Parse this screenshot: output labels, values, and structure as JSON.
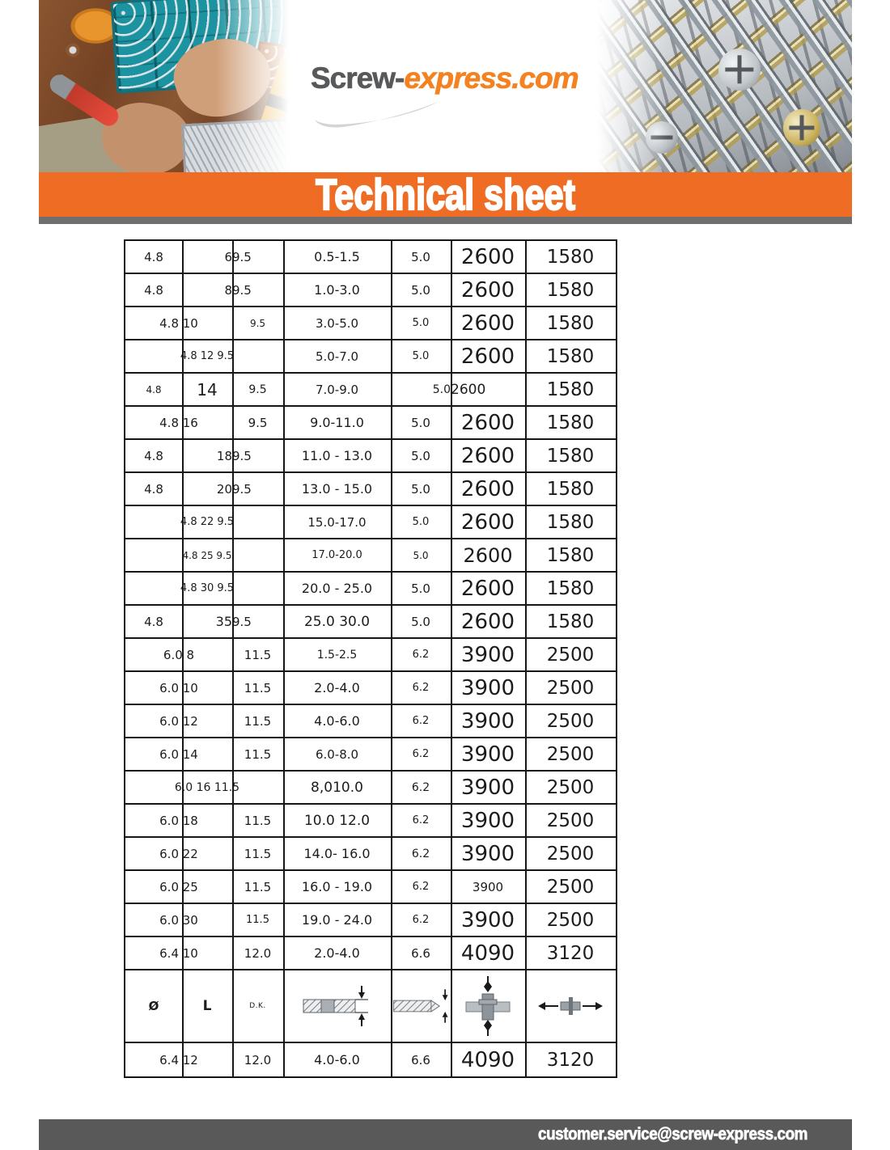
{
  "header": {
    "logo": {
      "part1": "Screw-",
      "part2": "express.com",
      "gray": "#58595b",
      "orange": "#f58220"
    }
  },
  "banner": {
    "title": "Technical sheet",
    "bg": "#ee6c23"
  },
  "footer": {
    "email": "customer.service@screw-express.com",
    "bg": "#595959"
  },
  "table": {
    "header_labels": {
      "diameter": "Ø",
      "length": "L",
      "head": "D.K."
    },
    "diagram_icons": [
      "grip-plates-diagram",
      "drill-hole-diagram",
      "tensile-rivet-diagram",
      "shear-rivet-diagram"
    ],
    "rows": [
      {
        "cells": [
          {
            "c": 0,
            "t": "4.8"
          },
          {
            "c": 1,
            "t": "6",
            "a": "r"
          },
          {
            "c": 2,
            "t": "9.5",
            "a": "l"
          },
          {
            "c": 3,
            "t": "0.5-1.5",
            "f": 16
          },
          {
            "c": 4,
            "t": "5.0"
          },
          {
            "c": 5,
            "t": "2600",
            "f": 26
          },
          {
            "c": 6,
            "t": "1580",
            "f": 23
          }
        ]
      },
      {
        "cells": [
          {
            "c": 0,
            "t": "4.8"
          },
          {
            "c": 1,
            "t": "8",
            "a": "r"
          },
          {
            "c": 2,
            "t": "9.5",
            "a": "l"
          },
          {
            "c": 3,
            "t": "1.0-3.0",
            "f": 16
          },
          {
            "c": 4,
            "t": "5.0"
          },
          {
            "c": 5,
            "t": "2600",
            "f": 26
          },
          {
            "c": 6,
            "t": "1580",
            "f": 23
          }
        ]
      },
      {
        "cells": [
          {
            "c": 0,
            "s": 2,
            "t": "4.8 10"
          },
          {
            "c": 2,
            "t": "9.5",
            "f": 12
          },
          {
            "c": 3,
            "t": "3.0-5.0",
            "f": 15
          },
          {
            "c": 4,
            "t": "5.0",
            "f": 13
          },
          {
            "c": 5,
            "t": "2600",
            "f": 26
          },
          {
            "c": 6,
            "t": "1580",
            "f": 23
          }
        ]
      },
      {
        "cells": [
          {
            "c": 1,
            "t": "4.8 12 9.5",
            "f": 13,
            "o": 1
          },
          {
            "c": 3,
            "t": "5.0-7.0",
            "f": 15
          },
          {
            "c": 4,
            "t": "5.0",
            "f": 13
          },
          {
            "c": 5,
            "t": "2600",
            "f": 26
          },
          {
            "c": 6,
            "t": "1580",
            "f": 23
          }
        ]
      },
      {
        "cells": [
          {
            "c": 0,
            "t": "4.8",
            "f": 12
          },
          {
            "c": 1,
            "t": "14",
            "f": 20
          },
          {
            "c": 2,
            "t": "9.5",
            "f": 14
          },
          {
            "c": 3,
            "t": "7.0-9.0",
            "f": 15
          },
          {
            "c": 4,
            "t": "5.0",
            "a": "r",
            "f": 14
          },
          {
            "c": 5,
            "t": "2600",
            "a": "l",
            "f": 17
          },
          {
            "c": 6,
            "t": "1580",
            "f": 23
          }
        ]
      },
      {
        "cells": [
          {
            "c": 0,
            "s": 2,
            "t": "4.8 16"
          },
          {
            "c": 2,
            "t": "9.5",
            "f": 15
          },
          {
            "c": 3,
            "t": "9.0-11.0",
            "f": 16
          },
          {
            "c": 4,
            "t": "5.0"
          },
          {
            "c": 5,
            "t": "2600",
            "f": 26
          },
          {
            "c": 6,
            "t": "1580",
            "f": 23
          }
        ]
      },
      {
        "cells": [
          {
            "c": 0,
            "t": "4.8"
          },
          {
            "c": 1,
            "t": "18",
            "a": "r"
          },
          {
            "c": 2,
            "t": "9.5",
            "a": "l"
          },
          {
            "c": 3,
            "t": "11.0 - 13.0",
            "f": 16
          },
          {
            "c": 4,
            "t": "5.0"
          },
          {
            "c": 5,
            "t": "2600",
            "f": 26
          },
          {
            "c": 6,
            "t": "1580",
            "f": 23
          }
        ]
      },
      {
        "cells": [
          {
            "c": 0,
            "t": "4.8"
          },
          {
            "c": 1,
            "t": "20",
            "a": "r"
          },
          {
            "c": 2,
            "t": "9.5",
            "a": "l"
          },
          {
            "c": 3,
            "t": "13.0 - 15.0",
            "f": 16
          },
          {
            "c": 4,
            "t": "5.0"
          },
          {
            "c": 5,
            "t": "2600",
            "f": 26
          },
          {
            "c": 6,
            "t": "1580",
            "f": 23
          }
        ]
      },
      {
        "cells": [
          {
            "c": 1,
            "t": "4.8 22 9.5",
            "f": 13,
            "o": 1
          },
          {
            "c": 3,
            "t": "15.0-17.0",
            "f": 15
          },
          {
            "c": 4,
            "t": "5.0",
            "f": 13
          },
          {
            "c": 5,
            "t": "2600",
            "f": 26
          },
          {
            "c": 6,
            "t": "1580",
            "f": 23
          }
        ]
      },
      {
        "cells": [
          {
            "c": 1,
            "t": "4.8 25 9.5",
            "f": 12,
            "o": 1
          },
          {
            "c": 3,
            "t": "17.0-20.0",
            "f": 13
          },
          {
            "c": 4,
            "t": "5.0",
            "f": 12
          },
          {
            "c": 5,
            "t": "2600",
            "f": 24
          },
          {
            "c": 6,
            "t": "1580",
            "f": 23
          }
        ]
      },
      {
        "cells": [
          {
            "c": 1,
            "t": "4.8 30 9.5",
            "f": 13,
            "o": 1
          },
          {
            "c": 3,
            "t": "20.0 - 25.0",
            "f": 16
          },
          {
            "c": 4,
            "t": "5.0"
          },
          {
            "c": 5,
            "t": "2600",
            "f": 26
          },
          {
            "c": 6,
            "t": "1580",
            "f": 23
          }
        ]
      },
      {
        "cells": [
          {
            "c": 0,
            "t": "4.8"
          },
          {
            "c": 1,
            "t": "35",
            "a": "r",
            "f": 16
          },
          {
            "c": 2,
            "t": "9.5",
            "a": "l"
          },
          {
            "c": 3,
            "t": "25.0 30.0",
            "f": 17
          },
          {
            "c": 4,
            "t": "5.0"
          },
          {
            "c": 5,
            "t": "2600",
            "f": 26
          },
          {
            "c": 6,
            "t": "1580",
            "f": 23
          }
        ]
      },
      {
        "cells": [
          {
            "c": 0,
            "s": 2,
            "t": "6.0 8"
          },
          {
            "c": 2,
            "t": "11.5"
          },
          {
            "c": 3,
            "t": "1.5-2.5",
            "f": 14
          },
          {
            "c": 4,
            "t": "6.2",
            "f": 13
          },
          {
            "c": 5,
            "t": "3900",
            "f": 26
          },
          {
            "c": 6,
            "t": "2500",
            "f": 23
          }
        ]
      },
      {
        "cells": [
          {
            "c": 0,
            "s": 2,
            "t": "6.0 10"
          },
          {
            "c": 2,
            "t": "11.5"
          },
          {
            "c": 3,
            "t": "2.0-4.0",
            "f": 16
          },
          {
            "c": 4,
            "t": "6.2",
            "f": 13
          },
          {
            "c": 5,
            "t": "3900",
            "f": 26
          },
          {
            "c": 6,
            "t": "2500",
            "f": 23
          }
        ]
      },
      {
        "cells": [
          {
            "c": 0,
            "s": 2,
            "t": "6.0 12"
          },
          {
            "c": 2,
            "t": "11.5"
          },
          {
            "c": 3,
            "t": "4.0-6.0",
            "f": 16
          },
          {
            "c": 4,
            "t": "6.2",
            "f": 13
          },
          {
            "c": 5,
            "t": "3900",
            "f": 26
          },
          {
            "c": 6,
            "t": "2500",
            "f": 23
          }
        ]
      },
      {
        "cells": [
          {
            "c": 0,
            "s": 2,
            "t": "6.0 14"
          },
          {
            "c": 2,
            "t": "11.5"
          },
          {
            "c": 3,
            "t": "6.0-8.0",
            "f": 15
          },
          {
            "c": 4,
            "t": "6.2",
            "f": 13
          },
          {
            "c": 5,
            "t": "3900",
            "f": 26
          },
          {
            "c": 6,
            "t": "2500",
            "f": 23
          }
        ]
      },
      {
        "cells": [
          {
            "c": 1,
            "t": "6.0 16 11.5",
            "f": 14,
            "o": 1
          },
          {
            "c": 3,
            "t": "8,010.0",
            "f": 17
          },
          {
            "c": 4,
            "t": "6.2",
            "f": 14
          },
          {
            "c": 5,
            "t": "3900",
            "f": 26
          },
          {
            "c": 6,
            "t": "2500",
            "f": 23
          }
        ]
      },
      {
        "cells": [
          {
            "c": 0,
            "s": 2,
            "t": "6.0 18"
          },
          {
            "c": 2,
            "t": "11.5"
          },
          {
            "c": 3,
            "t": "10.0 12.0",
            "f": 17
          },
          {
            "c": 4,
            "t": "6.2",
            "f": 13
          },
          {
            "c": 5,
            "t": "3900",
            "f": 26
          },
          {
            "c": 6,
            "t": "2500",
            "f": 23
          }
        ]
      },
      {
        "cells": [
          {
            "c": 0,
            "s": 2,
            "t": "6.0 22"
          },
          {
            "c": 2,
            "t": "11.5"
          },
          {
            "c": 3,
            "t": "14.0- 16.0",
            "f": 16
          },
          {
            "c": 4,
            "t": "6.2",
            "f": 14
          },
          {
            "c": 5,
            "t": "3900",
            "f": 26
          },
          {
            "c": 6,
            "t": "2500",
            "f": 23
          }
        ]
      },
      {
        "cells": [
          {
            "c": 0,
            "s": 2,
            "t": "6.0 25"
          },
          {
            "c": 2,
            "t": "11.5"
          },
          {
            "c": 3,
            "t": "16.0 - 19.0",
            "f": 16
          },
          {
            "c": 4,
            "t": "6.2",
            "f": 13
          },
          {
            "c": 5,
            "t": "3900",
            "f": 15
          },
          {
            "c": 6,
            "t": "2500",
            "f": 23
          }
        ]
      },
      {
        "cells": [
          {
            "c": 0,
            "s": 2,
            "t": "6.0 30"
          },
          {
            "c": 2,
            "t": "11.5",
            "f": 13
          },
          {
            "c": 3,
            "t": "19.0 - 24.0",
            "f": 16
          },
          {
            "c": 4,
            "t": "6.2",
            "f": 13
          },
          {
            "c": 5,
            "t": "3900",
            "f": 26
          },
          {
            "c": 6,
            "t": "2500",
            "f": 23
          }
        ]
      },
      {
        "cells": [
          {
            "c": 0,
            "s": 2,
            "t": "6.4 10"
          },
          {
            "c": 2,
            "t": "12.0"
          },
          {
            "c": 3,
            "t": "2.0-4.0",
            "f": 16
          },
          {
            "c": 4,
            "t": "6.6"
          },
          {
            "c": 5,
            "t": "4090",
            "f": 26
          },
          {
            "c": 6,
            "t": "3120",
            "f": 23
          }
        ]
      },
      {
        "h": 90,
        "header": true,
        "cells": [
          {
            "c": 0,
            "t": "Ø",
            "b": 1,
            "f": 15
          },
          {
            "c": 1,
            "t": "L",
            "b": 1,
            "f": 17
          },
          {
            "c": 2,
            "t": "D.K.",
            "f": 9
          },
          {
            "c": 3,
            "i": "grip"
          },
          {
            "c": 4,
            "i": "hole"
          },
          {
            "c": 5,
            "i": "tensile"
          },
          {
            "c": 6,
            "i": "shear"
          }
        ]
      },
      {
        "cells": [
          {
            "c": 0,
            "s": 2,
            "t": "6.4 12"
          },
          {
            "c": 2,
            "t": "12.0"
          },
          {
            "c": 3,
            "t": "4.0-6.0",
            "f": 16
          },
          {
            "c": 4,
            "t": "6.6"
          },
          {
            "c": 5,
            "t": "4090",
            "f": 26
          },
          {
            "c": 6,
            "t": "3120",
            "f": 23
          }
        ]
      }
    ]
  }
}
